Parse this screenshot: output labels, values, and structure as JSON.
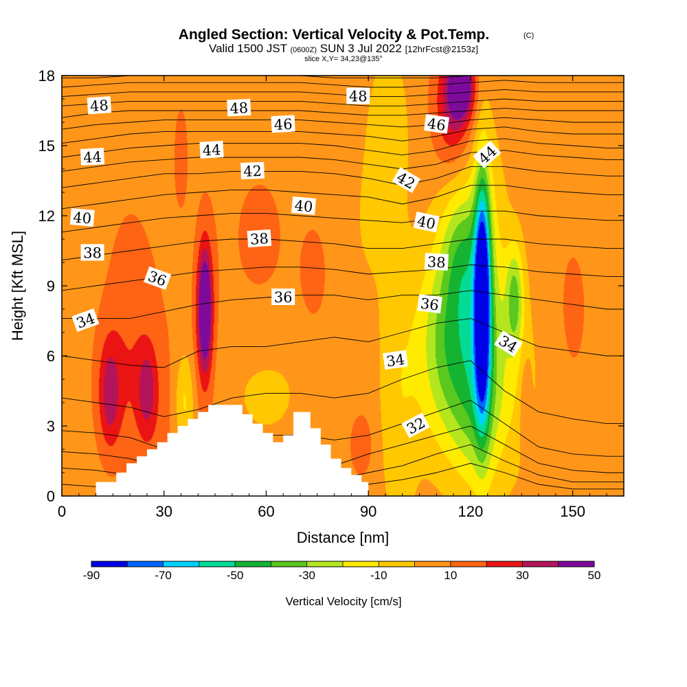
{
  "title": {
    "main": "Angled Section: Vertical Velocity & Pot.Temp.",
    "copyright": "(C)",
    "valid_prefix": "Valid 1500 JST",
    "valid_utc": "(0600Z)",
    "valid_date": "SUN 3 Jul 2022",
    "forecast": "[12hrFcst@2153z]",
    "slice": "slice X,Y= 34,23@135°"
  },
  "colorbar": {
    "label": "Vertical Velocity [cm/s]",
    "tick_labels": [
      "-90",
      "-70",
      "-50",
      "-30",
      "-10",
      "10",
      "30",
      "50"
    ],
    "colors": [
      "#0000e6",
      "#0064ff",
      "#00d2ff",
      "#00dc96",
      "#14b432",
      "#5ac81e",
      "#b4e61e",
      "#ffeb00",
      "#ffc800",
      "#ff9619",
      "#ff6414",
      "#eb1414",
      "#b4145a",
      "#7d0a9b"
    ]
  },
  "chart_data": {
    "type": "heatmap",
    "title": "Angled Section: Vertical Velocity & Pot.Temp.",
    "xlabel": "Distance [nm]",
    "ylabel": "Height [Kft MSL]",
    "xlim": [
      0,
      165
    ],
    "ylim": [
      0,
      18
    ],
    "x_ticks": [
      0,
      30,
      60,
      90,
      120,
      150
    ],
    "y_ticks": [
      0,
      3,
      6,
      9,
      12,
      15,
      18
    ],
    "fill_variable": "Vertical Velocity [cm/s]",
    "fill_levels": [
      -90,
      -80,
      -70,
      -60,
      -50,
      -40,
      -30,
      -20,
      -10,
      0,
      10,
      20,
      30,
      40,
      50
    ],
    "contour_variable": "Pot.Temp.",
    "background_value": 5,
    "features": [
      {
        "x": 123.5,
        "y": 8.5,
        "sx": 1.6,
        "sy": 3.5,
        "value": -95
      },
      {
        "x": 123.5,
        "y": 8.0,
        "sx": 4.5,
        "sy": 4.5,
        "value": -30
      },
      {
        "x": 114,
        "y": 6.5,
        "sx": 6.5,
        "sy": 3.0,
        "value": -45
      },
      {
        "x": 117,
        "y": 10.5,
        "sx": 4.0,
        "sy": 2.0,
        "value": -25
      },
      {
        "x": 133,
        "y": 8.5,
        "sx": 1.8,
        "sy": 1.6,
        "value": -35
      },
      {
        "x": 121,
        "y": 3.5,
        "sx": 5.0,
        "sy": 2.2,
        "value": -15
      },
      {
        "x": 99,
        "y": 4.0,
        "sx": 4.0,
        "sy": 4.0,
        "value": -12
      },
      {
        "x": 96,
        "y": 15.5,
        "sx": 4.0,
        "sy": 2.5,
        "value": -12
      },
      {
        "x": 132,
        "y": 5.0,
        "sx": 6.0,
        "sy": 3.0,
        "value": -12
      },
      {
        "x": 115,
        "y": 16.8,
        "sx": 4.0,
        "sy": 1.8,
        "value": 35
      },
      {
        "x": 117.5,
        "y": 17.5,
        "sx": 2.5,
        "sy": 0.9,
        "value": 45
      },
      {
        "x": 42,
        "y": 8.0,
        "sx": 1.3,
        "sy": 1.6,
        "value": 50
      },
      {
        "x": 42,
        "y": 7.5,
        "sx": 2.2,
        "sy": 3.0,
        "value": 25
      },
      {
        "x": 14,
        "y": 4.3,
        "sx": 2.2,
        "sy": 1.6,
        "value": 28
      },
      {
        "x": 18,
        "y": 5.0,
        "sx": 6.0,
        "sy": 2.5,
        "value": 15
      },
      {
        "x": 25,
        "y": 4.5,
        "sx": 2.0,
        "sy": 1.3,
        "value": 25
      },
      {
        "x": 28,
        "y": 3.0,
        "sx": 5.0,
        "sy": 4.0,
        "value": 10
      },
      {
        "x": 74,
        "y": 9.5,
        "sx": 2.5,
        "sy": 1.3,
        "value": 15
      },
      {
        "x": 88,
        "y": 2.2,
        "sx": 2.5,
        "sy": 1.0,
        "value": 15
      },
      {
        "x": 136,
        "y": 4.0,
        "sx": 1.2,
        "sy": 1.5,
        "value": 15
      },
      {
        "x": 35,
        "y": 14.5,
        "sx": 1.5,
        "sy": 1.6,
        "value": 14
      },
      {
        "x": 58,
        "y": 11.0,
        "sx": 8.0,
        "sy": 3.0,
        "value": 9
      },
      {
        "x": 20,
        "y": 10.0,
        "sx": 6.0,
        "sy": 3.0,
        "value": 8
      },
      {
        "x": 150,
        "y": 8.0,
        "sx": 6.0,
        "sy": 4.0,
        "value": 8
      },
      {
        "x": 60,
        "y": 4.5,
        "sx": 10.0,
        "sy": 2.0,
        "value": -6
      },
      {
        "x": 36,
        "y": 4.0,
        "sx": 2.0,
        "sy": 1.5,
        "value": -18
      },
      {
        "x": 90,
        "y": 11.5,
        "sx": 6.0,
        "sy": 3.0,
        "value": -4
      }
    ],
    "terrain": {
      "x": [
        10,
        16,
        19,
        22,
        25,
        28,
        31,
        34,
        37,
        40,
        43,
        50,
        53,
        56,
        59,
        62,
        65,
        68,
        70,
        73,
        76,
        79,
        82,
        85,
        88,
        90
      ],
      "y": [
        0.6,
        1.0,
        1.4,
        1.7,
        2.0,
        2.3,
        2.7,
        3.0,
        3.3,
        3.6,
        3.9,
        3.9,
        3.5,
        3.1,
        2.7,
        2.3,
        2.6,
        3.6,
        3.6,
        2.9,
        2.2,
        1.6,
        1.2,
        0.9,
        0.6,
        0.0
      ]
    },
    "isentropes": [
      {
        "value": 30,
        "y": [
          0.5,
          0.4,
          0.3,
          0.3,
          0.3,
          0.3,
          0.3,
          0.3,
          0.4,
          0.5,
          0.7,
          1.0,
          1.4,
          1.0,
          0.5,
          0.3,
          0.3,
          0.3
        ]
      },
      {
        "value": 31,
        "y": [
          1.2,
          1.1,
          0.9,
          0.6,
          0.6,
          0.6,
          0.6,
          0.6,
          0.7,
          1.0,
          1.3,
          1.8,
          2.2,
          1.5,
          0.9,
          0.6,
          0.6,
          0.6
        ]
      },
      {
        "value": 32,
        "y": [
          1.9,
          1.8,
          1.6,
          1.2,
          1.2,
          1.2,
          1.2,
          1.2,
          1.3,
          1.8,
          2.2,
          2.6,
          3.0,
          2.2,
          1.4,
          1.1,
          1.0,
          1.0
        ]
      },
      {
        "value": 33,
        "y": [
          2.8,
          2.7,
          2.5,
          2.0,
          2.4,
          2.6,
          2.6,
          2.6,
          2.4,
          2.6,
          3.1,
          3.6,
          4.1,
          3.1,
          2.1,
          1.8,
          1.7,
          1.7
        ]
      },
      {
        "value": 34,
        "y": [
          4.2,
          4.0,
          3.8,
          3.4,
          3.7,
          4.2,
          4.4,
          4.4,
          4.2,
          4.4,
          5.0,
          5.5,
          5.8,
          4.5,
          3.6,
          3.3,
          3.1,
          3.1
        ]
      },
      {
        "value": 35,
        "y": [
          6.0,
          5.8,
          5.6,
          5.5,
          6.2,
          6.4,
          6.4,
          6.6,
          6.8,
          6.6,
          7.0,
          7.4,
          7.6,
          7.0,
          6.4,
          6.2,
          6.0,
          6.0
        ]
      },
      {
        "value": 36,
        "y": [
          7.6,
          7.6,
          7.6,
          7.9,
          8.2,
          8.4,
          8.5,
          8.6,
          8.6,
          8.4,
          8.6,
          8.6,
          8.8,
          8.6,
          8.4,
          8.2,
          8.0,
          8.0
        ]
      },
      {
        "value": 37,
        "y": [
          8.8,
          9.0,
          9.2,
          9.4,
          9.6,
          9.7,
          9.8,
          9.8,
          9.7,
          9.5,
          9.6,
          9.7,
          9.9,
          9.8,
          9.6,
          9.5,
          9.4,
          9.4
        ]
      },
      {
        "value": 38,
        "y": [
          10.1,
          10.3,
          10.5,
          10.7,
          10.9,
          11.0,
          11.0,
          10.9,
          10.8,
          10.6,
          10.6,
          10.8,
          11.0,
          11.0,
          10.8,
          10.7,
          10.6,
          10.6
        ]
      },
      {
        "value": 39,
        "y": [
          11.3,
          11.5,
          11.7,
          11.9,
          12.0,
          12.1,
          12.1,
          12.0,
          11.9,
          11.8,
          11.7,
          11.9,
          12.2,
          12.2,
          12.0,
          11.9,
          11.8,
          11.8
        ]
      },
      {
        "value": 40,
        "y": [
          12.3,
          12.5,
          12.7,
          12.9,
          13.0,
          13.1,
          13.1,
          13.0,
          12.9,
          12.8,
          12.5,
          12.8,
          13.3,
          13.3,
          13.1,
          13.0,
          12.9,
          12.9
        ]
      },
      {
        "value": 41,
        "y": [
          13.2,
          13.4,
          13.6,
          13.8,
          13.8,
          13.9,
          13.9,
          13.9,
          13.8,
          13.6,
          13.3,
          13.6,
          14.1,
          14.1,
          13.9,
          13.8,
          13.7,
          13.7
        ]
      },
      {
        "value": 42,
        "y": [
          13.9,
          14.1,
          14.3,
          14.4,
          14.5,
          14.5,
          14.5,
          14.5,
          14.4,
          14.2,
          14.0,
          14.2,
          14.7,
          14.8,
          14.6,
          14.5,
          14.4,
          14.4
        ]
      },
      {
        "value": 43,
        "y": [
          14.5,
          14.7,
          14.9,
          15.0,
          15.1,
          15.1,
          15.1,
          15.1,
          15.0,
          14.8,
          14.6,
          14.8,
          15.2,
          15.3,
          15.1,
          15.0,
          14.9,
          14.9
        ]
      },
      {
        "value": 44,
        "y": [
          15.1,
          15.3,
          15.5,
          15.6,
          15.6,
          15.6,
          15.6,
          15.6,
          15.5,
          15.4,
          15.2,
          15.4,
          15.7,
          15.8,
          15.6,
          15.5,
          15.5,
          15.5
        ]
      },
      {
        "value": 45,
        "y": [
          15.7,
          15.9,
          16.0,
          16.1,
          16.1,
          16.1,
          16.1,
          16.1,
          16.0,
          15.9,
          15.8,
          15.9,
          16.1,
          16.2,
          16.1,
          16.0,
          16.0,
          16.0
        ]
      },
      {
        "value": 46,
        "y": [
          16.2,
          16.4,
          16.5,
          16.5,
          16.5,
          16.5,
          16.5,
          16.5,
          16.4,
          16.3,
          16.3,
          16.4,
          16.5,
          16.6,
          16.5,
          16.5,
          16.5,
          16.5
        ]
      },
      {
        "value": 47,
        "y": [
          16.7,
          16.8,
          16.9,
          16.9,
          16.9,
          16.9,
          16.9,
          16.9,
          16.8,
          16.7,
          16.7,
          16.8,
          16.9,
          17.0,
          16.9,
          16.9,
          16.9,
          16.9
        ]
      },
      {
        "value": 48,
        "y": [
          17.1,
          17.2,
          17.3,
          17.3,
          17.3,
          17.3,
          17.3,
          17.3,
          17.2,
          17.1,
          17.1,
          17.2,
          17.3,
          17.4,
          17.3,
          17.3,
          17.3,
          17.3
        ]
      },
      {
        "value": 49,
        "y": [
          17.5,
          17.6,
          17.7,
          17.7,
          17.7,
          17.7,
          17.7,
          17.7,
          17.6,
          17.5,
          17.5,
          17.6,
          17.7,
          17.8,
          17.7,
          17.7,
          17.7,
          17.7
        ]
      },
      {
        "value": 50,
        "y": [
          17.9,
          17.9,
          18.0,
          18.0,
          18.0,
          18.0,
          18.0,
          18.0,
          17.9,
          17.9,
          17.9,
          17.9,
          18.0,
          18.0,
          18.0,
          18.0,
          18.0,
          18.0
        ]
      }
    ],
    "isentrope_x": [
      0,
      10,
      20,
      30,
      40,
      50,
      60,
      70,
      80,
      90,
      100,
      110,
      120,
      130,
      140,
      150,
      160,
      165
    ],
    "contour_labels": [
      {
        "text": "48",
        "x": 11,
        "y": 16.7,
        "angle": -4
      },
      {
        "text": "48",
        "x": 52,
        "y": 16.6,
        "angle": -3
      },
      {
        "text": "48",
        "x": 87,
        "y": 17.1,
        "angle": 0
      },
      {
        "text": "46",
        "x": 65,
        "y": 15.9,
        "angle": -3
      },
      {
        "text": "46",
        "x": 110,
        "y": 15.9,
        "angle": 8
      },
      {
        "text": "44",
        "x": 9,
        "y": 14.5,
        "angle": -3
      },
      {
        "text": "44",
        "x": 44,
        "y": 14.8,
        "angle": -3
      },
      {
        "text": "44",
        "x": 125,
        "y": 14.6,
        "angle": -42
      },
      {
        "text": "42",
        "x": 56,
        "y": 13.9,
        "angle": -2
      },
      {
        "text": "42",
        "x": 101,
        "y": 13.5,
        "angle": 30
      },
      {
        "text": "40",
        "x": 6,
        "y": 11.9,
        "angle": 5
      },
      {
        "text": "40",
        "x": 71,
        "y": 12.4,
        "angle": 5
      },
      {
        "text": "40",
        "x": 107,
        "y": 11.7,
        "angle": 12
      },
      {
        "text": "38",
        "x": 9,
        "y": 10.4,
        "angle": 0
      },
      {
        "text": "38",
        "x": 58,
        "y": 11.0,
        "angle": -4
      },
      {
        "text": "38",
        "x": 110,
        "y": 10.0,
        "angle": 3
      },
      {
        "text": "36",
        "x": 28,
        "y": 9.3,
        "angle": 20
      },
      {
        "text": "36",
        "x": 65,
        "y": 8.5,
        "angle": 0
      },
      {
        "text": "36",
        "x": 108,
        "y": 8.2,
        "angle": 7
      },
      {
        "text": "34",
        "x": 7,
        "y": 7.5,
        "angle": -20
      },
      {
        "text": "34",
        "x": 98,
        "y": 5.8,
        "angle": -8
      },
      {
        "text": "34",
        "x": 131,
        "y": 6.5,
        "angle": 32
      },
      {
        "text": "32",
        "x": 104,
        "y": 3.0,
        "angle": -28
      }
    ]
  }
}
